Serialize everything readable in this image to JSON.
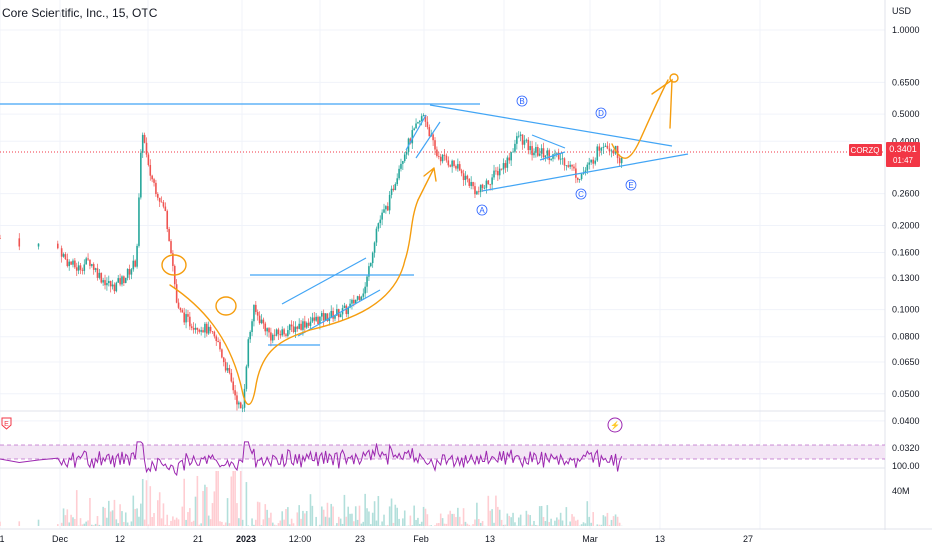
{
  "header": {
    "title": "Core Scientific, Inc., 15, OTC"
  },
  "price_axis": {
    "currency": "USD",
    "ticks": [
      "1.0000",
      "0.6500",
      "0.5000",
      "0.4000",
      "0.2600",
      "0.2000",
      "0.1600",
      "0.1300",
      "0.1000",
      "0.0800",
      "0.0650",
      "0.0500",
      "0.0400",
      "0.0320"
    ],
    "symbol": "CORZQ",
    "last_price": "0.3401",
    "countdown": "01:47"
  },
  "rsi_axis": {
    "ticks": [
      "100.00"
    ]
  },
  "volume_axis": {
    "ticks": [
      "40M"
    ]
  },
  "time_axis": {
    "labels": [
      "1",
      "Dec",
      "12",
      "21",
      "2023",
      "12:00",
      "23",
      "Feb",
      "13",
      "Mar",
      "13",
      "27"
    ]
  },
  "wave_labels": [
    "A",
    "B",
    "C",
    "D",
    "E"
  ],
  "markers": {
    "earnings": "E",
    "lightning": "⚡"
  },
  "colors": {
    "up": "#26a69a",
    "down": "#ef5350",
    "trend_line": "#42a5f5",
    "annotation": "#f59d0e",
    "rsi": "#9c27b0",
    "rsi_band": "#f3e5f5",
    "price_tag": "#f23645",
    "wave_label": "#2962ff"
  },
  "chart_data": {
    "type": "candlestick",
    "scale": "log",
    "ylim": [
      0.032,
      1.0
    ],
    "price_path": [
      [
        "Nov 30",
        0.18
      ],
      [
        "Dec 2",
        0.15
      ],
      [
        "Dec 4",
        0.14
      ],
      [
        "Dec 6",
        0.15
      ],
      [
        "Dec 8",
        0.13
      ],
      [
        "Dec 10",
        0.12
      ],
      [
        "Dec 12",
        0.13
      ],
      [
        "Dec 14",
        0.15
      ],
      [
        "Dec 15",
        0.45
      ],
      [
        "Dec 16",
        0.32
      ],
      [
        "Dec 18",
        0.25
      ],
      [
        "Dec 19",
        0.22
      ],
      [
        "Dec 20",
        0.16
      ],
      [
        "Dec 21",
        0.1
      ],
      [
        "Dec 23",
        0.09
      ],
      [
        "Dec 26",
        0.085
      ],
      [
        "Dec 28",
        0.075
      ],
      [
        "Jan 1",
        0.042
      ],
      [
        "Jan 2",
        0.075
      ],
      [
        "Jan 3",
        0.1
      ],
      [
        "Jan 6",
        0.08
      ],
      [
        "Jan 9",
        0.085
      ],
      [
        "Jan 12",
        0.09
      ],
      [
        "Jan 16",
        0.095
      ],
      [
        "Jan 19",
        0.1
      ],
      [
        "Jan 22",
        0.12
      ],
      [
        "Jan 24",
        0.2
      ],
      [
        "Jan 26",
        0.24
      ],
      [
        "Jan 28",
        0.34
      ],
      [
        "Jan 30",
        0.42
      ],
      [
        "Feb 1",
        0.5
      ],
      [
        "Feb 3",
        0.36
      ],
      [
        "Feb 6",
        0.33
      ],
      [
        "Feb 9",
        0.28
      ],
      [
        "Feb 10",
        0.26
      ],
      [
        "Feb 15",
        0.34
      ],
      [
        "Feb 17",
        0.42
      ],
      [
        "Feb 19",
        0.37
      ],
      [
        "Feb 22",
        0.36
      ],
      [
        "Feb 25",
        0.34
      ],
      [
        "Feb 27",
        0.3
      ],
      [
        "Feb 28",
        0.31
      ],
      [
        "Mar 1",
        0.33
      ],
      [
        "Mar 3",
        0.4
      ],
      [
        "Mar 5",
        0.37
      ],
      [
        "Mar 6",
        0.34
      ]
    ],
    "last": 0.3401,
    "rsi_range": [
      0,
      100
    ],
    "volume_peak_label": "40M",
    "grid": true,
    "legend": "none"
  }
}
